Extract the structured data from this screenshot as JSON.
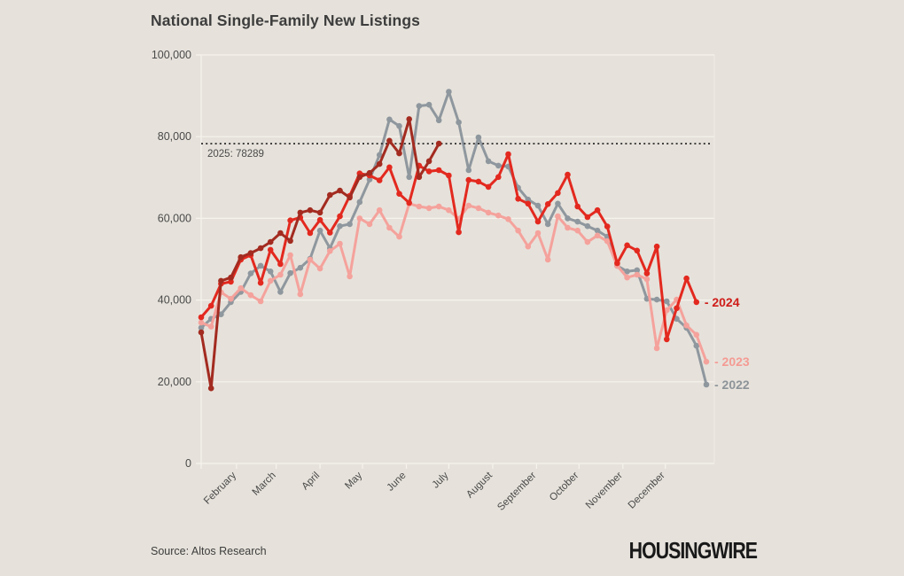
{
  "header": {
    "title": "National Single-Family New Listings"
  },
  "footer": {
    "source": "Source: Altos Research",
    "brand": "HOUSINGWIRE"
  },
  "chart_data": {
    "type": "line",
    "title": "National Single-Family New Listings",
    "xlabel": "",
    "ylabel": "",
    "x_unit": "week of year",
    "ylim": [
      0,
      100000
    ],
    "grid": "horizontal",
    "legend_position": "right-of-line-ends",
    "yticks": [
      {
        "value": 0,
        "label": "0"
      },
      {
        "value": 20000,
        "label": "20,000"
      },
      {
        "value": 40000,
        "label": "40,000"
      },
      {
        "value": 60000,
        "label": "60,000"
      },
      {
        "value": 80000,
        "label": "80,000"
      },
      {
        "value": 100000,
        "label": "100,000"
      }
    ],
    "months": [
      {
        "label": "February",
        "day": 32
      },
      {
        "label": "March",
        "day": 60
      },
      {
        "label": "April",
        "day": 91
      },
      {
        "label": "May",
        "day": 121
      },
      {
        "label": "June",
        "day": 152
      },
      {
        "label": "July",
        "day": 182
      },
      {
        "label": "August",
        "day": 213
      },
      {
        "label": "September",
        "day": 244
      },
      {
        "label": "October",
        "day": 274
      },
      {
        "label": "November",
        "day": 305
      },
      {
        "label": "December",
        "day": 335
      }
    ],
    "annotation": {
      "label": "2025: 78289",
      "value": 78289,
      "style": "dotted-horizontal-line"
    },
    "series": [
      {
        "name": "2022",
        "color": "#8f979e",
        "label_color": "#8d9499",
        "legend_label": "- 2022",
        "values": [
          33200,
          35400,
          36500,
          39500,
          42000,
          46500,
          48400,
          47000,
          42000,
          46600,
          47900,
          50100,
          57000,
          52700,
          58100,
          58600,
          64000,
          69500,
          75500,
          84200,
          82600,
          70100,
          87500,
          87800,
          84000,
          91000,
          83500,
          71800,
          79800,
          74000,
          72900,
          72700,
          67500,
          64600,
          63100,
          58600,
          63600,
          60000,
          59200,
          58100,
          57000,
          55500,
          48400,
          47000,
          47300,
          40300,
          40100,
          39700,
          35400,
          33200,
          28800,
          19300
        ]
      },
      {
        "name": "2023",
        "color": "#f5a29c",
        "label_color": "#f49b94",
        "legend_label": "- 2023",
        "values": [
          34500,
          33500,
          41900,
          40300,
          42900,
          41200,
          39700,
          44700,
          46200,
          51000,
          41400,
          49900,
          47700,
          52000,
          53800,
          45800,
          60000,
          58600,
          62000,
          57700,
          55500,
          63600,
          62900,
          62500,
          62900,
          62000,
          59900,
          63100,
          62500,
          61400,
          60700,
          59800,
          57000,
          53100,
          56400,
          49900,
          60500,
          57700,
          57000,
          54200,
          55800,
          54400,
          48400,
          45500,
          46200,
          45100,
          28200,
          37500,
          40100,
          33800,
          31500,
          24900
        ]
      },
      {
        "name": "2024",
        "color": "#e3291f",
        "label_color": "#cf1d1a",
        "legend_label": "- 2024",
        "values": [
          35800,
          38600,
          44000,
          44500,
          49900,
          51000,
          44200,
          52300,
          48800,
          59500,
          60200,
          56400,
          59600,
          56500,
          60500,
          65500,
          71000,
          70500,
          69300,
          72500,
          66000,
          63800,
          72900,
          71500,
          71800,
          70500,
          56600,
          69400,
          69000,
          67700,
          70100,
          75700,
          64800,
          63600,
          59200,
          63500,
          66200,
          70700,
          62900,
          60300,
          62000,
          58000,
          49000,
          53400,
          52100,
          46500,
          53100,
          30400,
          38000,
          45300,
          39500
        ]
      },
      {
        "name": "2025",
        "color": "#a32b20",
        "label_color": "#a32b20",
        "legend_label": "",
        "values": [
          32100,
          18400,
          44700,
          45500,
          50500,
          51500,
          52700,
          54200,
          56400,
          54500,
          61400,
          62000,
          61400,
          65700,
          66800,
          65100,
          70100,
          71100,
          73300,
          79000,
          75900,
          84300,
          70100,
          74000,
          78289
        ]
      }
    ]
  }
}
